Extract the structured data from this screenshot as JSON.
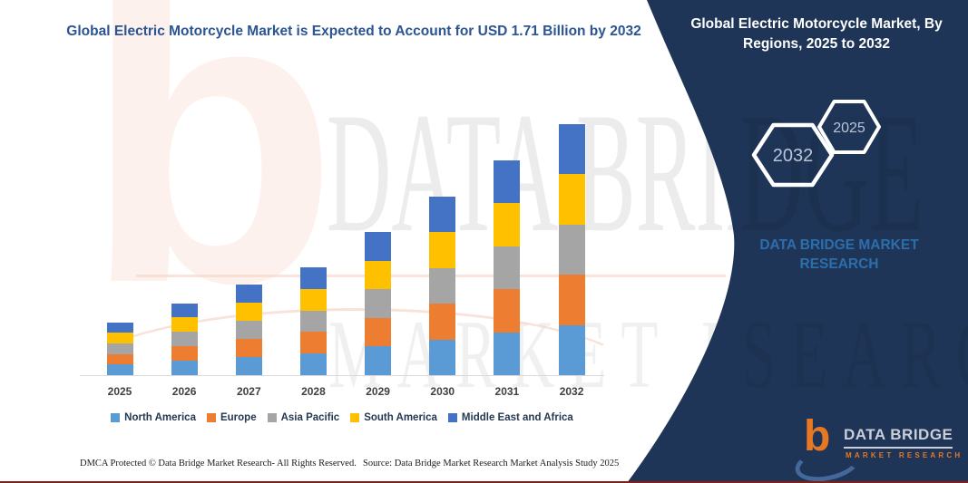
{
  "left_section": {
    "title": "Global Electric Motorcycle Market is Expected to Account for USD 1.71 Billion by 2032",
    "title_color": "#2a5492",
    "footer_dmca": "DMCA Protected © Data Bridge Market Research-  All Rights Reserved.",
    "footer_source": "Source: Data Bridge Market Research  Market Analysis Study 2025",
    "watermark_letter": "b",
    "watermark_line1": "DATA BRIDGE",
    "watermark_line2": "MARKET RESEARCH"
  },
  "chart_data": {
    "type": "bar",
    "stacked": true,
    "title": "Global Electric Motorcycle Market is Expected to Account for USD 1.71 Billion by 2032",
    "unit": "USD Billion",
    "categories": [
      "2025",
      "2026",
      "2027",
      "2028",
      "2029",
      "2030",
      "2031",
      "2032"
    ],
    "series": [
      {
        "name": "North America",
        "color": "#5b9bd5",
        "values": [
          0.072,
          0.098,
          0.124,
          0.147,
          0.195,
          0.244,
          0.293,
          0.342
        ]
      },
      {
        "name": "Europe",
        "color": "#ed7d31",
        "values": [
          0.072,
          0.098,
          0.124,
          0.147,
          0.195,
          0.244,
          0.293,
          0.342
        ]
      },
      {
        "name": "Asia Pacific",
        "color": "#a5a5a5",
        "values": [
          0.072,
          0.098,
          0.124,
          0.147,
          0.195,
          0.244,
          0.293,
          0.342
        ]
      },
      {
        "name": "South America",
        "color": "#ffc000",
        "values": [
          0.072,
          0.098,
          0.124,
          0.147,
          0.195,
          0.244,
          0.293,
          0.342
        ]
      },
      {
        "name": "Middle East and Africa",
        "color": "#4472c4",
        "values": [
          0.072,
          0.098,
          0.124,
          0.147,
          0.195,
          0.244,
          0.293,
          0.342
        ]
      }
    ],
    "totals": [
      0.36,
      0.49,
      0.62,
      0.73,
      0.98,
      1.22,
      1.46,
      1.71
    ],
    "ylim": [
      0,
      1.8
    ],
    "grid": false,
    "legend_position": "bottom",
    "xlabel": "",
    "ylabel": ""
  },
  "right_panel": {
    "bg": "#1f3557",
    "title": "Global Electric Motorcycle Market, By Regions, 2025 to 2032",
    "hexagons": [
      {
        "label": "2032"
      },
      {
        "label": "2025"
      }
    ],
    "watermark_line1": "DATA BRIDGE MARKET",
    "watermark_line2": "RESEARCH",
    "watermark_color": "#2e75b6",
    "wm_big1": "DGE",
    "wm_big2": "SEARCH",
    "logo": {
      "b": "b",
      "name": "DATA BRIDGE",
      "tagline": "MARKET RESEARCH",
      "accent": "#e87722"
    }
  }
}
